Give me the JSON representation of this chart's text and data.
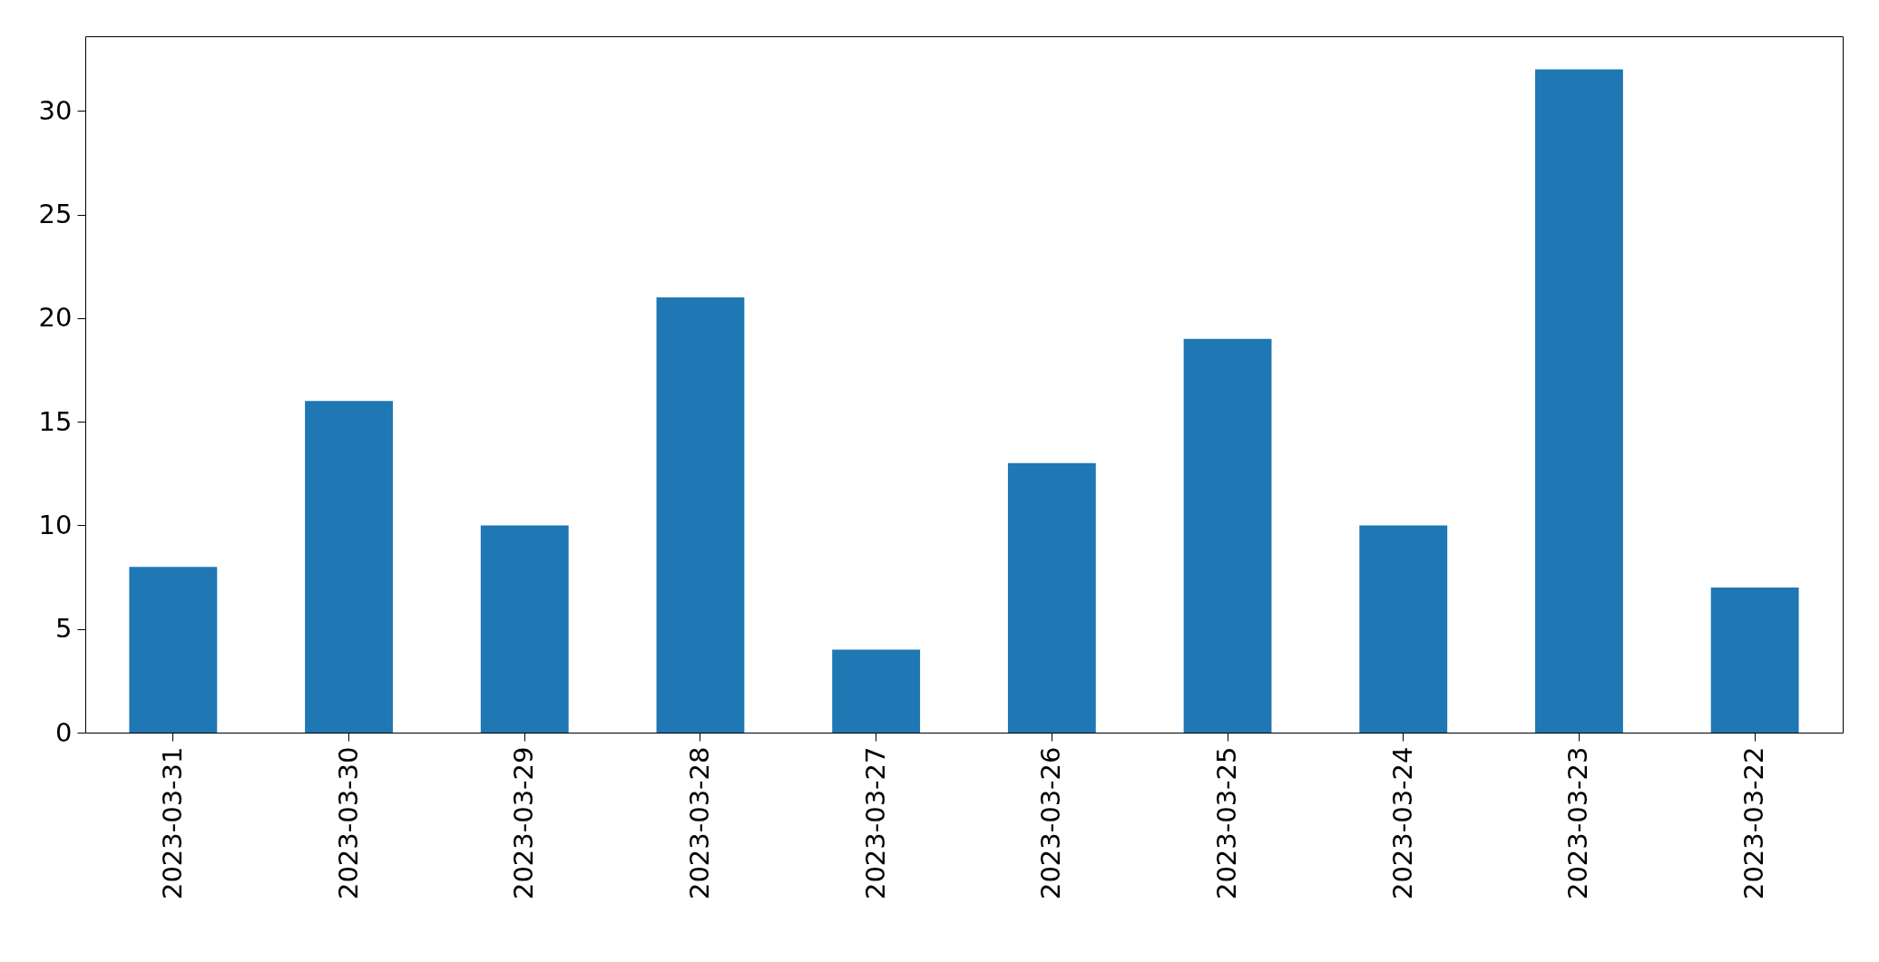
{
  "chart_data": {
    "type": "bar",
    "categories": [
      "2023-03-31",
      "2023-03-30",
      "2023-03-29",
      "2023-03-28",
      "2023-03-27",
      "2023-03-26",
      "2023-03-25",
      "2023-03-24",
      "2023-03-23",
      "2023-03-22"
    ],
    "values": [
      8,
      16,
      10,
      21,
      4,
      13,
      19,
      10,
      32,
      7
    ],
    "color": "#1f77b4",
    "ylim": [
      0,
      33.6
    ],
    "yticks": [
      0,
      5,
      10,
      15,
      20,
      25,
      30
    ],
    "grid": false
  }
}
